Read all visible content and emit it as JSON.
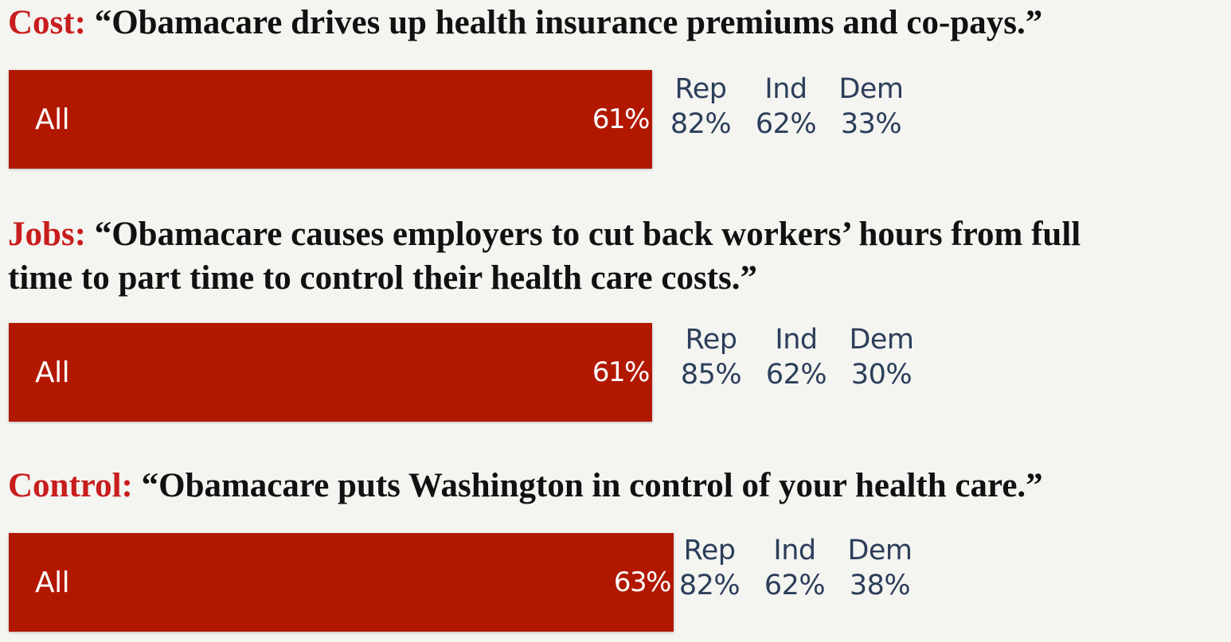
{
  "chart_data": [
    {
      "type": "bar",
      "orientation": "horizontal",
      "topic": "Cost:",
      "statement": "“Obamacare drives up health insurance premiums and co-pays.”",
      "categories": [
        "All"
      ],
      "values": [
        61
      ],
      "value_labels": [
        "61%"
      ],
      "xlim": [
        0,
        100
      ],
      "breakdown": {
        "categories": [
          "Rep",
          "Ind",
          "Dem"
        ],
        "values": [
          82,
          62,
          33
        ],
        "value_labels": [
          "82%",
          "62%",
          "33%"
        ]
      }
    },
    {
      "type": "bar",
      "orientation": "horizontal",
      "topic": "Jobs:",
      "statement": "“Obamacare causes employers to cut back workers’ hours from full",
      "statement_line2": "time to part time to control their health care costs.”",
      "categories": [
        "All"
      ],
      "values": [
        61
      ],
      "value_labels": [
        "61%"
      ],
      "xlim": [
        0,
        100
      ],
      "breakdown": {
        "categories": [
          "Rep",
          "Ind",
          "Dem"
        ],
        "values": [
          85,
          62,
          30
        ],
        "value_labels": [
          "85%",
          "62%",
          "30%"
        ]
      }
    },
    {
      "type": "bar",
      "orientation": "horizontal",
      "topic": "Control:",
      "statement": "“Obamacare puts Washington in control of your health care.”",
      "categories": [
        "All"
      ],
      "values": [
        63
      ],
      "value_labels": [
        "63%"
      ],
      "xlim": [
        0,
        100
      ],
      "breakdown": {
        "categories": [
          "Rep",
          "Ind",
          "Dem"
        ],
        "values": [
          82,
          62,
          38
        ],
        "value_labels": [
          "82%",
          "62%",
          "38%"
        ]
      }
    }
  ],
  "colors": {
    "bar": "#b21800",
    "topic": "#c81d1d",
    "statement": "#111111",
    "breakdown_text": "#2c3e5a",
    "background": "#f4f4f1"
  }
}
